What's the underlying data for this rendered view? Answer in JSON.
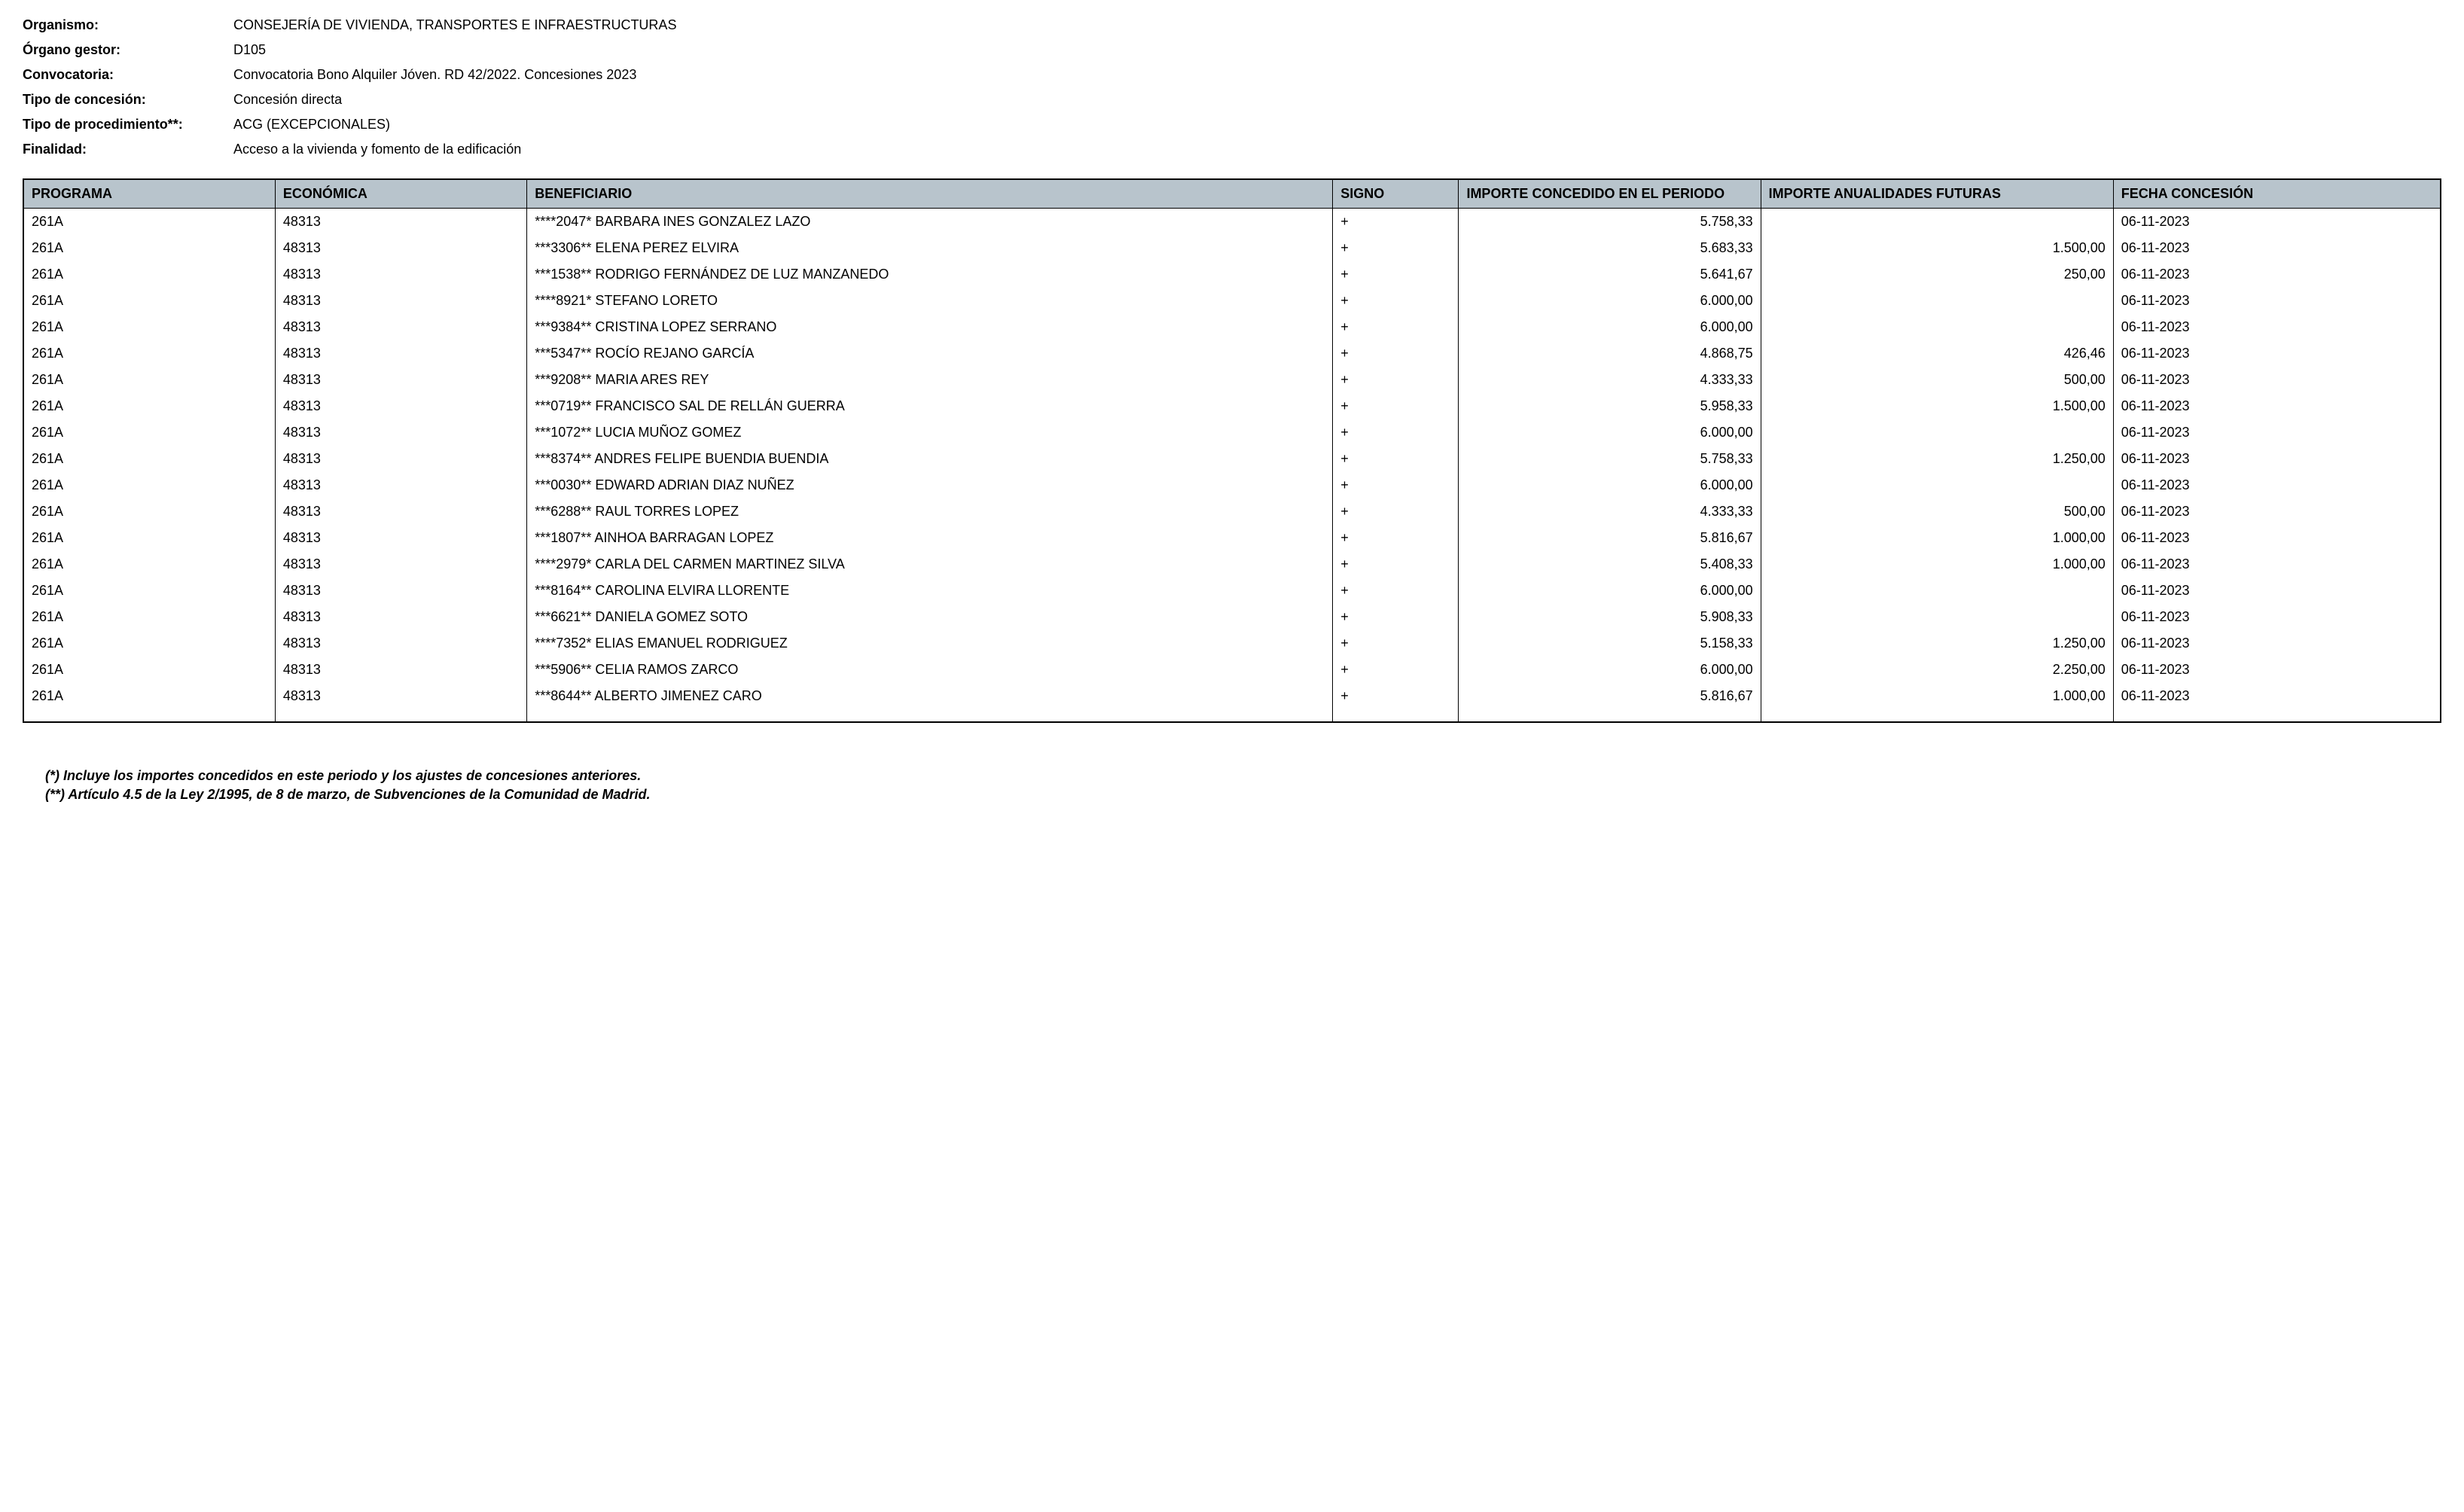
{
  "header": {
    "fields": [
      {
        "label": "Organismo:",
        "value": "CONSEJERÍA DE VIVIENDA, TRANSPORTES E INFRAESTRUCTURAS"
      },
      {
        "label": "Órgano gestor:",
        "value": "D105"
      },
      {
        "label": "Convocatoria:",
        "value": "Convocatoria Bono Alquiler Jóven. RD 42/2022. Concesiones 2023"
      },
      {
        "label": "Tipo de concesión:",
        "value": "Concesión directa"
      },
      {
        "label": "Tipo de procedimiento**:",
        "value": "ACG (EXCEPCIONALES)"
      },
      {
        "label": "Finalidad:",
        "value": "Acceso a la vivienda y fomento de la edificación"
      }
    ]
  },
  "table": {
    "columns": [
      "PROGRAMA",
      "ECONÓMICA",
      "BENEFICIARIO",
      "SIGNO",
      "IMPORTE CONCEDIDO EN EL PERIODO",
      "IMPORTE ANUALIDADES FUTURAS",
      "FECHA CONCESIÓN"
    ],
    "rows": [
      {
        "programa": "261A",
        "economica": "48313",
        "beneficiario": "****2047* BARBARA INES GONZALEZ LAZO",
        "signo": "+",
        "importe_periodo": "5.758,33",
        "importe_futuras": "",
        "fecha": "06-11-2023"
      },
      {
        "programa": "261A",
        "economica": "48313",
        "beneficiario": "***3306** ELENA PEREZ ELVIRA",
        "signo": "+",
        "importe_periodo": "5.683,33",
        "importe_futuras": "1.500,00",
        "fecha": "06-11-2023"
      },
      {
        "programa": "261A",
        "economica": "48313",
        "beneficiario": "***1538** RODRIGO FERNÁNDEZ DE LUZ MANZANEDO",
        "signo": "+",
        "importe_periodo": "5.641,67",
        "importe_futuras": "250,00",
        "fecha": "06-11-2023"
      },
      {
        "programa": "261A",
        "economica": "48313",
        "beneficiario": "****8921* STEFANO LORETO",
        "signo": "+",
        "importe_periodo": "6.000,00",
        "importe_futuras": "",
        "fecha": "06-11-2023"
      },
      {
        "programa": "261A",
        "economica": "48313",
        "beneficiario": "***9384** CRISTINA LOPEZ SERRANO",
        "signo": "+",
        "importe_periodo": "6.000,00",
        "importe_futuras": "",
        "fecha": "06-11-2023"
      },
      {
        "programa": "261A",
        "economica": "48313",
        "beneficiario": "***5347** ROCÍO REJANO GARCÍA",
        "signo": "+",
        "importe_periodo": "4.868,75",
        "importe_futuras": "426,46",
        "fecha": "06-11-2023"
      },
      {
        "programa": "261A",
        "economica": "48313",
        "beneficiario": "***9208** MARIA ARES REY",
        "signo": "+",
        "importe_periodo": "4.333,33",
        "importe_futuras": "500,00",
        "fecha": "06-11-2023"
      },
      {
        "programa": "261A",
        "economica": "48313",
        "beneficiario": "***0719** FRANCISCO SAL DE RELLÁN GUERRA",
        "signo": "+",
        "importe_periodo": "5.958,33",
        "importe_futuras": "1.500,00",
        "fecha": "06-11-2023"
      },
      {
        "programa": "261A",
        "economica": "48313",
        "beneficiario": "***1072** LUCIA MUÑOZ GOMEZ",
        "signo": "+",
        "importe_periodo": "6.000,00",
        "importe_futuras": "",
        "fecha": "06-11-2023"
      },
      {
        "programa": "261A",
        "economica": "48313",
        "beneficiario": "***8374** ANDRES FELIPE BUENDIA BUENDIA",
        "signo": "+",
        "importe_periodo": "5.758,33",
        "importe_futuras": "1.250,00",
        "fecha": "06-11-2023"
      },
      {
        "programa": "261A",
        "economica": "48313",
        "beneficiario": "***0030** EDWARD ADRIAN DIAZ NUÑEZ",
        "signo": "+",
        "importe_periodo": "6.000,00",
        "importe_futuras": "",
        "fecha": "06-11-2023"
      },
      {
        "programa": "261A",
        "economica": "48313",
        "beneficiario": "***6288** RAUL TORRES LOPEZ",
        "signo": "+",
        "importe_periodo": "4.333,33",
        "importe_futuras": "500,00",
        "fecha": "06-11-2023"
      },
      {
        "programa": "261A",
        "economica": "48313",
        "beneficiario": "***1807** AINHOA BARRAGAN LOPEZ",
        "signo": "+",
        "importe_periodo": "5.816,67",
        "importe_futuras": "1.000,00",
        "fecha": "06-11-2023"
      },
      {
        "programa": "261A",
        "economica": "48313",
        "beneficiario": "****2979* CARLA DEL CARMEN MARTINEZ SILVA",
        "signo": "+",
        "importe_periodo": "5.408,33",
        "importe_futuras": "1.000,00",
        "fecha": "06-11-2023"
      },
      {
        "programa": "261A",
        "economica": "48313",
        "beneficiario": "***8164** CAROLINA ELVIRA LLORENTE",
        "signo": "+",
        "importe_periodo": "6.000,00",
        "importe_futuras": "",
        "fecha": "06-11-2023"
      },
      {
        "programa": "261A",
        "economica": "48313",
        "beneficiario": "***6621** DANIELA GOMEZ SOTO",
        "signo": "+",
        "importe_periodo": "5.908,33",
        "importe_futuras": "",
        "fecha": "06-11-2023"
      },
      {
        "programa": "261A",
        "economica": "48313",
        "beneficiario": "****7352* ELIAS EMANUEL RODRIGUEZ",
        "signo": "+",
        "importe_periodo": "5.158,33",
        "importe_futuras": "1.250,00",
        "fecha": "06-11-2023"
      },
      {
        "programa": "261A",
        "economica": "48313",
        "beneficiario": "***5906** CELIA RAMOS ZARCO",
        "signo": "+",
        "importe_periodo": "6.000,00",
        "importe_futuras": "2.250,00",
        "fecha": "06-11-2023"
      },
      {
        "programa": "261A",
        "economica": "48313",
        "beneficiario": "***8644** ALBERTO JIMENEZ CARO",
        "signo": "+",
        "importe_periodo": "5.816,67",
        "importe_futuras": "1.000,00",
        "fecha": "06-11-2023"
      }
    ]
  },
  "footnotes": [
    "(*) Incluye los importes concedidos en este periodo y los ajustes de concesiones anteriores.",
    "(**) Artículo 4.5 de la Ley 2/1995, de 8 de marzo, de Subvenciones de la Comunidad de Madrid."
  ]
}
